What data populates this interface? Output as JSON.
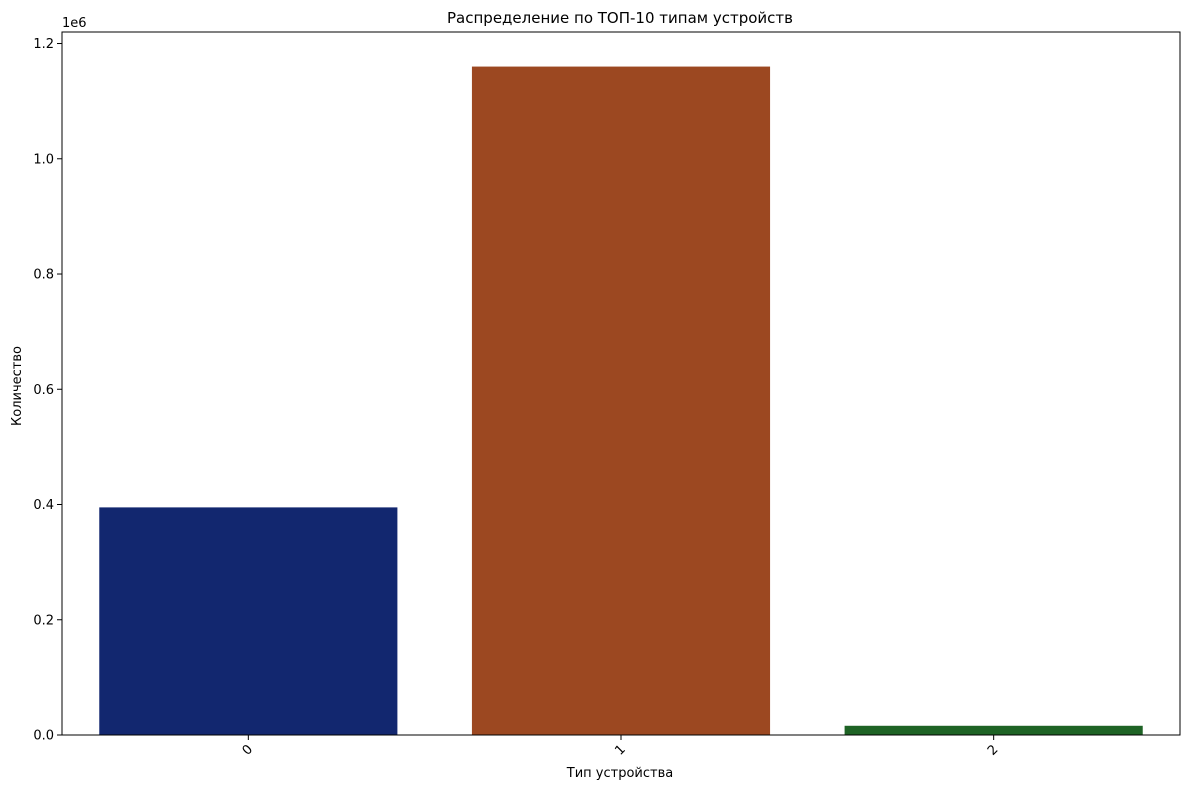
{
  "chart_data": {
    "type": "bar",
    "title": "Распределение по ТОП-10 типам устройств",
    "xlabel": "Тип устройства",
    "ylabel": "Количество",
    "y_offset_text": "1e6",
    "categories": [
      "0",
      "1",
      "2"
    ],
    "values": [
      395000,
      1160000,
      16000
    ],
    "colors": [
      "#12276f",
      "#9c4821",
      "#1e6325"
    ],
    "ylim": [
      0,
      1220000
    ],
    "y_ticks": [
      0,
      200000,
      400000,
      600000,
      800000,
      1000000,
      1200000
    ],
    "y_tick_labels": [
      "0.0",
      "0.2",
      "0.4",
      "0.6",
      "0.8",
      "1.0",
      "1.2"
    ],
    "grid": false,
    "legend": "none"
  }
}
